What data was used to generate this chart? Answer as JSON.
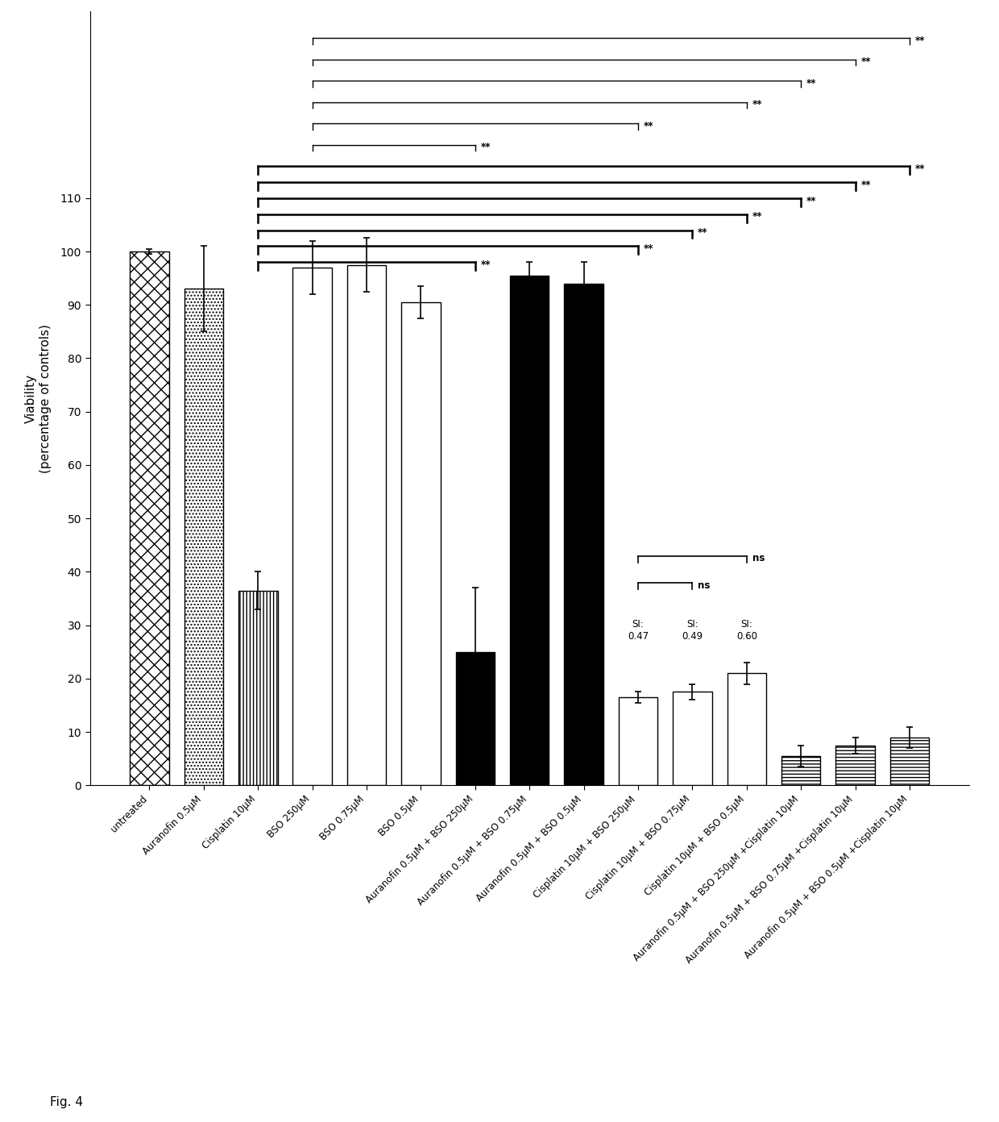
{
  "categories": [
    "untreated",
    "Auranofin 0.5μM",
    "Cisplatin 10μM",
    "BSO 250μM",
    "BSO 0.75μM",
    "BSO 0.5μM",
    "Auranofin 0.5μM + BSO 250μM",
    "Auranofin 0.5μM + BSO 0.75μM",
    "Auranofin 0.5μM + BSO 0.5μM",
    "Cisplatin 10μM + BSO 250μM",
    "Cisplatin 10μM + BSO 0.75μM",
    "Cisplatin 10μM + BSO 0.5μM",
    "Auranofin 0.5μM + BSO 250μM +Cisplatin 10μM",
    "Auranofin 0.5μM + BSO 0.75μM +Cisplatin 10μM",
    "Auranofin 0.5μM + BSO 0.5μM +Cisplatin 10μM"
  ],
  "values": [
    100,
    93,
    36.5,
    97,
    97.5,
    90.5,
    25,
    95.5,
    94,
    16.5,
    17.5,
    21,
    5.5,
    7.5,
    9
  ],
  "errors": [
    0.5,
    8,
    3.5,
    5,
    5,
    3,
    12,
    2.5,
    4,
    1,
    1.5,
    2,
    2,
    1.5,
    2
  ],
  "ylabel": "Viability\n(percentage of controls)",
  "ylim_display": [
    0,
    110
  ],
  "ylim_full": [
    0,
    145
  ],
  "yticks": [
    0,
    10,
    20,
    30,
    40,
    50,
    60,
    70,
    80,
    90,
    100,
    110
  ],
  "fig_caption": "Fig. 4",
  "facecolors": [
    "white",
    "white",
    "white",
    "white",
    "white",
    "white",
    "black",
    "black",
    "black",
    "white",
    "white",
    "white",
    "white",
    "white",
    "white"
  ],
  "hatch_patterns": [
    "xx",
    "....",
    "||||",
    "",
    "",
    "",
    "",
    "",
    "",
    "",
    "",
    "",
    "----",
    "----",
    "----"
  ],
  "sig_brackets_top_thin": [
    [
      3,
      14,
      "**",
      140
    ],
    [
      3,
      13,
      "**",
      136
    ],
    [
      3,
      12,
      "**",
      132
    ],
    [
      3,
      11,
      "**",
      128
    ],
    [
      3,
      9,
      "**",
      124
    ],
    [
      3,
      6,
      "**",
      120
    ]
  ],
  "sig_brackets_mid_thick": [
    [
      2,
      14,
      "**",
      116
    ],
    [
      2,
      13,
      "**",
      113
    ],
    [
      2,
      12,
      "**",
      110
    ],
    [
      2,
      11,
      "**",
      107
    ],
    [
      2,
      10,
      "**",
      104
    ],
    [
      2,
      9,
      "**",
      101
    ],
    [
      2,
      6,
      "**",
      98
    ]
  ],
  "ns_brackets": [
    [
      9,
      11,
      "ns",
      43
    ],
    [
      9,
      10,
      "ns",
      38
    ]
  ],
  "si_annotations": [
    {
      "bar_idx": 9,
      "text": "SI:\n0.47",
      "y": 27
    },
    {
      "bar_idx": 10,
      "text": "SI:\n0.49",
      "y": 27
    },
    {
      "bar_idx": 11,
      "text": "SI:\n0.60",
      "y": 27
    }
  ]
}
